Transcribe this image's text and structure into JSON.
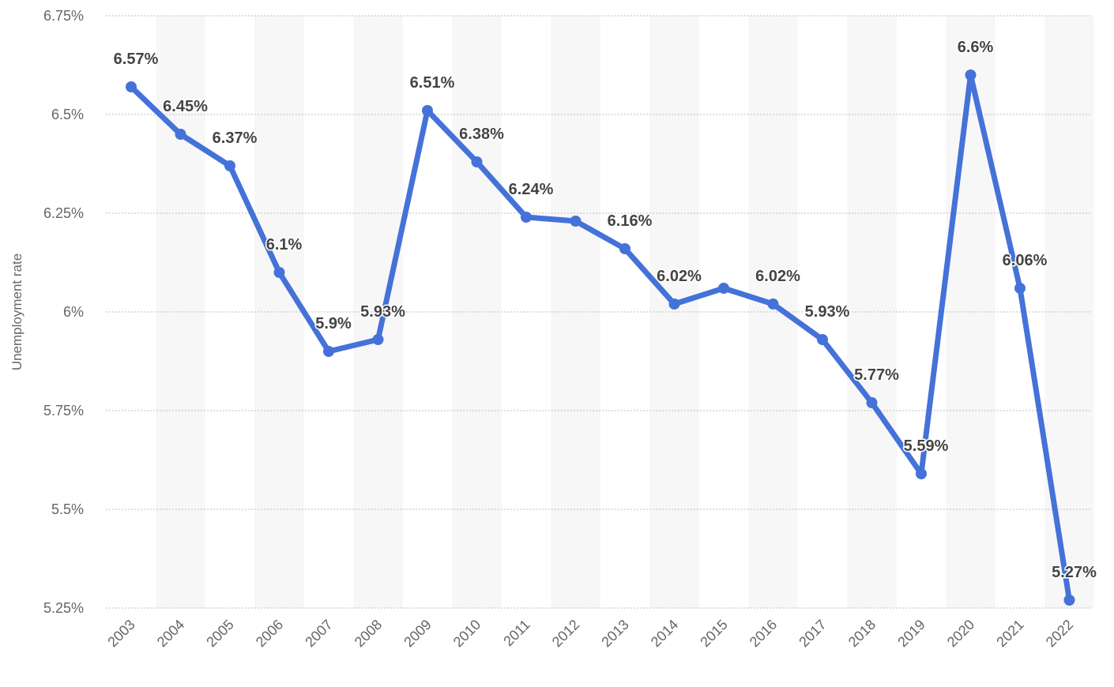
{
  "chart_data": {
    "type": "line",
    "ylabel": "Unemployment rate",
    "xlabel": "",
    "ylim": [
      5.25,
      6.75
    ],
    "grid": true,
    "y_ticks": [
      "5.25%",
      "5.5%",
      "5.75%",
      "6%",
      "6.25%",
      "6.5%",
      "6.75%"
    ],
    "y_tick_values": [
      5.25,
      5.5,
      5.75,
      6.0,
      6.25,
      6.5,
      6.75
    ],
    "categories": [
      "2003",
      "2004",
      "2005",
      "2006",
      "2007",
      "2008",
      "2009",
      "2010",
      "2011",
      "2012",
      "2013",
      "2014",
      "2015",
      "2016",
      "2017",
      "2018",
      "2019",
      "2020",
      "2021",
      "2022"
    ],
    "series": [
      {
        "values": [
          6.57,
          6.45,
          6.37,
          6.1,
          5.9,
          5.93,
          6.51,
          6.38,
          6.24,
          6.23,
          6.16,
          6.02,
          6.06,
          6.02,
          5.93,
          5.77,
          5.59,
          6.6,
          6.06,
          5.27
        ],
        "labels": [
          "6.57%",
          "6.45%",
          "6.37%",
          "6.1%",
          "5.9%",
          "5.93%",
          "6.51%",
          "6.38%",
          "6.24%",
          "",
          "6.16%",
          "6.02%",
          "",
          "6.02%",
          "5.93%",
          "5.77%",
          "5.59%",
          "6.6%",
          "6.06%",
          "5.27%"
        ],
        "color": "#4472d8"
      }
    ],
    "colors": {
      "line": "#4472d8",
      "band": "#f7f7f7",
      "grid": "#bdbdbd",
      "tick": "#666666",
      "label": "#444444"
    }
  }
}
